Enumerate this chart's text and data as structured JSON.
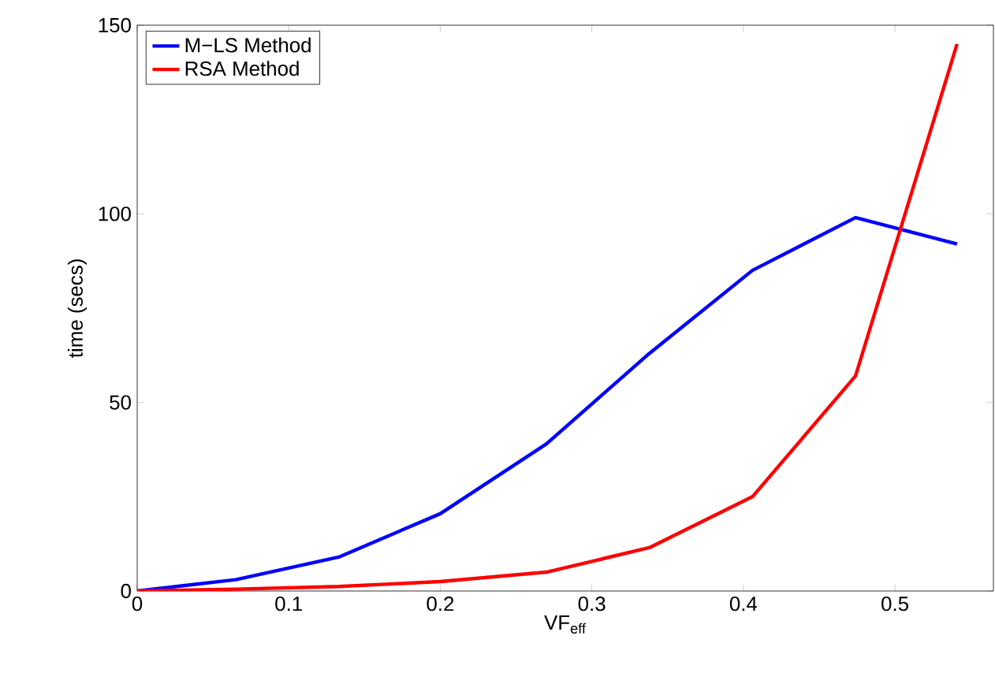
{
  "chart_data": {
    "type": "line",
    "xlabel": "VF$_{eff}$",
    "ylabel": "time (secs)",
    "x": [
      0,
      0.065,
      0.133,
      0.2,
      0.27,
      0.338,
      0.406,
      0.474,
      0.541
    ],
    "series": [
      {
        "name": "M−LS Method",
        "color": "#0000ff",
        "values": [
          0,
          3,
          9,
          20.5,
          39,
          63,
          85,
          99,
          92
        ]
      },
      {
        "name": "RSA Method",
        "color": "#ff0000",
        "values": [
          0,
          0.5,
          1.2,
          2.5,
          5,
          11.5,
          25,
          57,
          145
        ]
      }
    ],
    "xlim": [
      0,
      0.565
    ],
    "ylim": [
      0,
      150
    ],
    "xticks": [
      0,
      0.1,
      0.2,
      0.3,
      0.4,
      0.5
    ],
    "yticks": [
      0,
      50,
      100,
      150
    ],
    "legend": "top left",
    "grid": false,
    "marker": "none",
    "line_style": "solid"
  }
}
